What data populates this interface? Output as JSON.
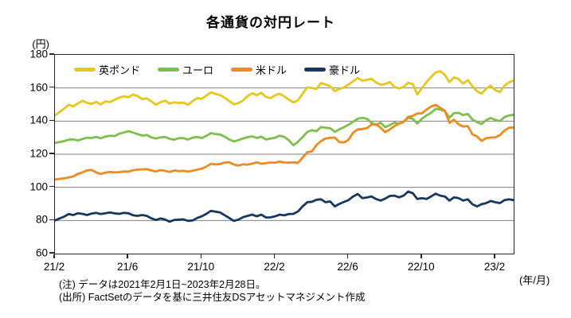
{
  "title": "各通貨の対円レート",
  "y_axis": {
    "unit": "(円)",
    "min": 60,
    "max": 180,
    "tick_step": 20,
    "ticks": [
      180,
      160,
      140,
      120,
      100,
      80,
      60
    ]
  },
  "x_axis": {
    "unit": "(年/月)",
    "labels": [
      "21/2",
      "21/6",
      "21/10",
      "22/2",
      "22/6",
      "22/10",
      "23/2"
    ],
    "tick_months": [
      0,
      4,
      8,
      12,
      16,
      20,
      24
    ],
    "total_months": 25
  },
  "notes": {
    "line1": "(注) データは2021年2月1日~2023年2月28日。",
    "line2": "(出所) FactSetのデータを基に三井住友DSアセットマネジメント作成"
  },
  "colors": {
    "grid": "#808080",
    "axis": "#262626",
    "text": "#000000"
  },
  "chart_data": {
    "type": "line",
    "title": "各通貨の対円レート",
    "ylabel": "(円)",
    "xlabel": "(年/月)",
    "ylim": [
      60,
      180
    ],
    "grid": true,
    "legend_position": "top-inside",
    "x_unit": "months since 2021-02-01",
    "x_start": 0,
    "x_step": 0.25,
    "x_end": 25,
    "x_tick_labels": [
      "21/2",
      "21/6",
      "21/10",
      "22/2",
      "22/6",
      "22/10",
      "23/2"
    ],
    "series": [
      {
        "id": "gbp",
        "name": "英ポンド",
        "color": "#E6C71E",
        "values": [
          143.4,
          145.6,
          147.5,
          149.9,
          148.9,
          150.7,
          152.3,
          151.0,
          150.4,
          151.6,
          150.1,
          151.9,
          151.5,
          152.9,
          154.1,
          155.0,
          154.4,
          156.0,
          155.2,
          153.3,
          153.7,
          152.0,
          149.9,
          151.4,
          152.4,
          150.6,
          151.3,
          150.9,
          151.2,
          149.9,
          152.0,
          153.9,
          153.4,
          155.4,
          157.4,
          156.4,
          155.7,
          154.1,
          152.1,
          150.1,
          150.9,
          152.5,
          155.1,
          156.8,
          155.6,
          157.1,
          154.6,
          153.9,
          155.6,
          156.6,
          154.9,
          152.9,
          151.3,
          152.6,
          156.5,
          160.4,
          160.0,
          159.4,
          163.0,
          162.1,
          161.0,
          158.1,
          159.4,
          160.3,
          162.0,
          164.1,
          166.1,
          164.4,
          164.9,
          165.6,
          163.4,
          162.0,
          162.4,
          163.6,
          160.6,
          159.7,
          160.6,
          163.1,
          162.4,
          156.0,
          160.0,
          163.6,
          166.6,
          169.4,
          170.1,
          167.9,
          163.6,
          166.4,
          165.4,
          162.6,
          164.8,
          161.0,
          158.0,
          156.6,
          159.6,
          161.4,
          158.6,
          157.6,
          161.4,
          163.4,
          164.4
        ]
      },
      {
        "id": "eur",
        "name": "ユーロ",
        "color": "#7DBF4B",
        "values": [
          126.8,
          127.4,
          127.9,
          128.8,
          129.0,
          128.3,
          129.2,
          130.0,
          129.8,
          130.5,
          129.6,
          130.7,
          131.2,
          131.0,
          132.4,
          133.1,
          133.9,
          133.1,
          132.2,
          131.3,
          131.6,
          130.2,
          129.5,
          130.2,
          130.4,
          129.3,
          128.8,
          129.7,
          129.7,
          128.9,
          130.0,
          130.5,
          129.7,
          131.1,
          132.7,
          132.2,
          131.9,
          130.6,
          128.9,
          127.8,
          128.5,
          129.5,
          130.3,
          130.8,
          129.8,
          130.6,
          128.9,
          129.5,
          130.0,
          131.2,
          130.4,
          128.4,
          125.4,
          127.6,
          130.4,
          133.4,
          134.5,
          133.9,
          136.4,
          136.0,
          135.7,
          133.6,
          135.0,
          136.3,
          137.8,
          139.6,
          141.4,
          142.0,
          141.4,
          139.0,
          137.6,
          139.0,
          136.3,
          137.6,
          139.0,
          138.4,
          139.6,
          142.0,
          141.4,
          138.6,
          141.4,
          143.4,
          145.0,
          147.4,
          147.0,
          146.0,
          142.1,
          144.8,
          145.0,
          143.6,
          144.4,
          141.0,
          139.4,
          138.3,
          140.6,
          141.9,
          140.7,
          140.0,
          142.4,
          143.4,
          143.8
        ]
      },
      {
        "id": "usd",
        "name": "米ドル",
        "color": "#EE8A1E",
        "values": [
          104.7,
          105.1,
          105.4,
          106.0,
          106.6,
          108.2,
          109.0,
          110.2,
          110.5,
          109.0,
          108.1,
          108.9,
          109.3,
          109.0,
          109.2,
          109.6,
          109.5,
          110.3,
          110.7,
          110.9,
          111.0,
          110.2,
          109.6,
          110.4,
          110.0,
          109.3,
          110.2,
          109.8,
          110.0,
          109.5,
          110.0,
          110.7,
          111.3,
          112.5,
          114.2,
          113.8,
          114.1,
          115.0,
          115.1,
          113.8,
          113.2,
          113.9,
          113.7,
          114.3,
          115.1,
          114.3,
          114.6,
          115.0,
          114.9,
          115.6,
          115.0,
          114.9,
          115.1,
          114.8,
          118.0,
          121.2,
          121.7,
          125.5,
          127.9,
          129.5,
          129.9,
          130.1,
          127.3,
          127.1,
          128.7,
          133.0,
          135.0,
          135.2,
          135.7,
          137.9,
          138.2,
          136.0,
          133.3,
          135.0,
          137.0,
          138.5,
          139.5,
          142.5,
          143.2,
          144.6,
          144.7,
          147.0,
          148.8,
          149.8,
          148.0,
          146.3,
          139.0,
          140.8,
          138.1,
          136.7,
          137.0,
          132.0,
          130.8,
          128.0,
          129.7,
          130.1,
          130.2,
          131.5,
          134.3,
          136.0,
          136.2
        ]
      },
      {
        "id": "aud",
        "name": "豪ドル",
        "color": "#17375E",
        "values": [
          80.0,
          81.2,
          82.3,
          83.9,
          83.3,
          84.4,
          84.0,
          83.3,
          84.2,
          84.6,
          83.9,
          84.4,
          84.8,
          84.3,
          84.0,
          84.6,
          84.4,
          83.2,
          82.8,
          83.3,
          82.8,
          81.3,
          80.3,
          81.2,
          80.6,
          79.3,
          80.3,
          80.5,
          80.7,
          79.8,
          80.0,
          81.5,
          82.5,
          84.0,
          85.8,
          85.3,
          84.8,
          83.2,
          81.5,
          79.8,
          80.5,
          82.0,
          82.8,
          83.5,
          82.5,
          83.5,
          81.8,
          81.9,
          82.5,
          83.5,
          83.1,
          83.9,
          84.0,
          85.5,
          88.5,
          91.0,
          91.3,
          92.5,
          92.8,
          91.0,
          91.5,
          88.5,
          90.0,
          91.2,
          92.3,
          94.5,
          96.0,
          93.5,
          93.9,
          94.5,
          93.0,
          92.0,
          93.2,
          94.8,
          95.0,
          94.0,
          95.0,
          97.5,
          96.5,
          93.0,
          93.5,
          93.0,
          94.5,
          96.2,
          95.0,
          94.5,
          92.0,
          94.0,
          93.5,
          92.0,
          92.8,
          89.8,
          88.5,
          89.8,
          90.5,
          91.8,
          91.0,
          90.5,
          92.3,
          92.8,
          92.3
        ]
      }
    ]
  }
}
